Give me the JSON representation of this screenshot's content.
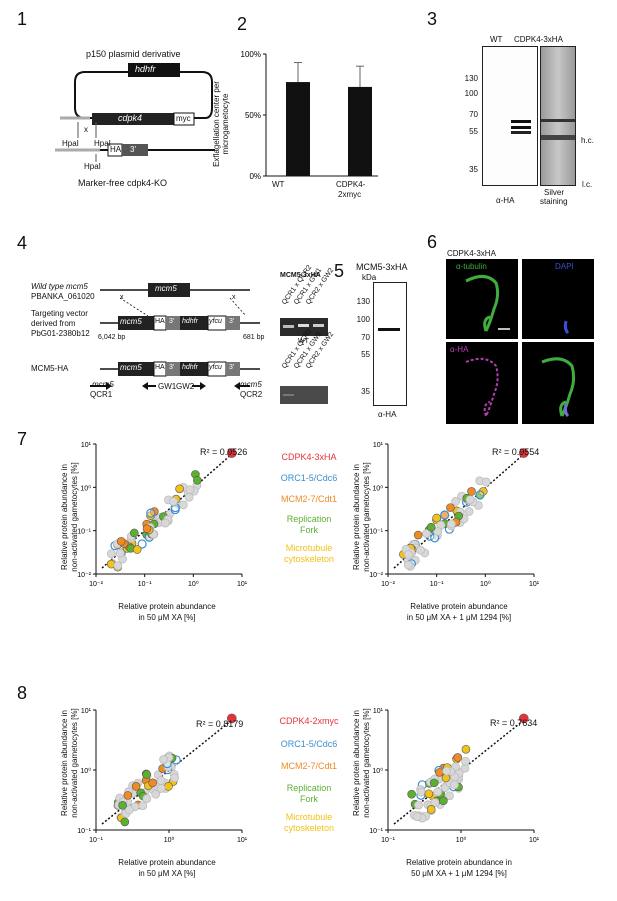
{
  "panels": {
    "p1": "1",
    "p2": "2",
    "p3": "3",
    "p4": "4",
    "p5": "5",
    "p6": "6",
    "p7": "7",
    "p8": "8"
  },
  "panel1": {
    "title": "p150 plasmid derivative",
    "hdhfr": "hdhfr",
    "cdpk4": "cdpk4",
    "myc": "myc",
    "hpa1": "HpaI",
    "x": "x",
    "hpa2": "HpaI",
    "hpa3": "HpaI",
    "ha": "HA",
    "three": "3'",
    "caption": "Marker-free cdpk4-KO"
  },
  "panel2": {
    "ylabel": "Exflagellation center per microgametocyte",
    "yticks": [
      "100%",
      "50%",
      "0%"
    ],
    "chart_data": {
      "type": "bar",
      "categories": [
        "WT",
        "CDPK4-2xmyc"
      ],
      "values": [
        77,
        73
      ],
      "errors": [
        16,
        17
      ],
      "ylim": [
        0,
        100
      ],
      "ylabel": "Exflagellation center per microgametocyte"
    },
    "cat1": "WT",
    "cat2a": "CDPK4-",
    "cat2b": "2xmyc"
  },
  "panel3": {
    "lane1": "WT",
    "lane2": "CDPK4-3xHA",
    "markers": [
      "130",
      "100",
      "70",
      "55",
      "35"
    ],
    "hc": "h.c.",
    "lc": "l.c.",
    "wb": "α-HA",
    "silver1": "Silver",
    "silver2": "staining"
  },
  "panel4": {
    "wt1": "Wild type mcm5",
    "wt2": "PBANKA_061020",
    "tv1": "Targeting vector",
    "tv2": "derived from",
    "tv3": "PbG01-2380b12",
    "mcm5ha": "MCM5-HA",
    "mcm5": "mcm5",
    "ha": "HA",
    "three": "3'",
    "hdhfr": "hdhfr",
    "yfcu": "yfcu",
    "bp1": "6,042 bp",
    "bp2": "681 bp",
    "x": "x",
    "qcr1a": "mcm5",
    "qcr1b": "QCR1",
    "gw1": "GW1",
    "gw2": "GW2",
    "qcr2a": "mcm5",
    "qcr2b": "QCR2",
    "gelTitle": "MCM5-3xHA",
    "lanes1": [
      "QCR1 x QCR2",
      "QCR1 x GW1",
      "QCR2 x GW2"
    ],
    "wt": "WT",
    "lanes2": [
      "QCR1 x QCR2",
      "QCR1 x GW1",
      "QCR2 x GW2"
    ]
  },
  "panel5": {
    "title": "MCM5-3xHA",
    "kda": "kDa",
    "markers": [
      "130",
      "100",
      "70",
      "55",
      "35"
    ],
    "wb": "α-HA"
  },
  "panel6": {
    "title": "CDPK4-3xHA",
    "tub": "α-tubulin",
    "dapi": "DAPI",
    "ha": "α-HA",
    "colors": {
      "tubulin": "#3fae3f",
      "dapi": "#3a4fd6",
      "ha": "#c13fc1"
    }
  },
  "legend": {
    "cdpk3": "CDPK4-3xHA",
    "cdpk2": "CDPK4-2xmyc",
    "orc": "ORC1-5/Cdc6",
    "mcm": "MCM2-7/Cdt1",
    "rep1": "Replication",
    "rep2": "Fork",
    "mic1": "Microtubule",
    "mic2": "cytoskeleton",
    "colors": {
      "cdpk": "#e8323a",
      "orc": "#3a8fd0",
      "mcm": "#f08a24",
      "rep": "#5cb030",
      "mic": "#f2c21a",
      "other": "#c8c8c8"
    }
  },
  "panel7": {
    "ylabel1": "Relative protein abundance in",
    "ylabel2": "non-activated gametocytes [%]",
    "left": {
      "r2": "R² = 0.9526",
      "xlabel1": "Relative protein abundance",
      "xlabel2": "in 50 μM XA [%]"
    },
    "right": {
      "r2": "R² = 0.9554",
      "xlabel1": "Relative protein abundance",
      "xlabel2": "in 50 μM XA + 1 μM 1294 [%]"
    },
    "ticks": [
      "10⁻²",
      "10⁻¹",
      "10⁰",
      "10¹"
    ]
  },
  "panel8": {
    "ylabel1": "Relative protein abundance in",
    "ylabel2": "non-activated gametocytes [%]",
    "left": {
      "r2": "R² = 0.8179",
      "xlabel1": "Relative protein abundance",
      "xlabel2": "in 50 μM XA [%]"
    },
    "right": {
      "r2": "R² = 0.7634",
      "xlabel1": "Relative protein abundance in",
      "xlabel2": "50 μM XA + 1 μM 1294 [%]"
    },
    "ticks": [
      "10⁻¹",
      "10⁰",
      "10¹"
    ]
  }
}
